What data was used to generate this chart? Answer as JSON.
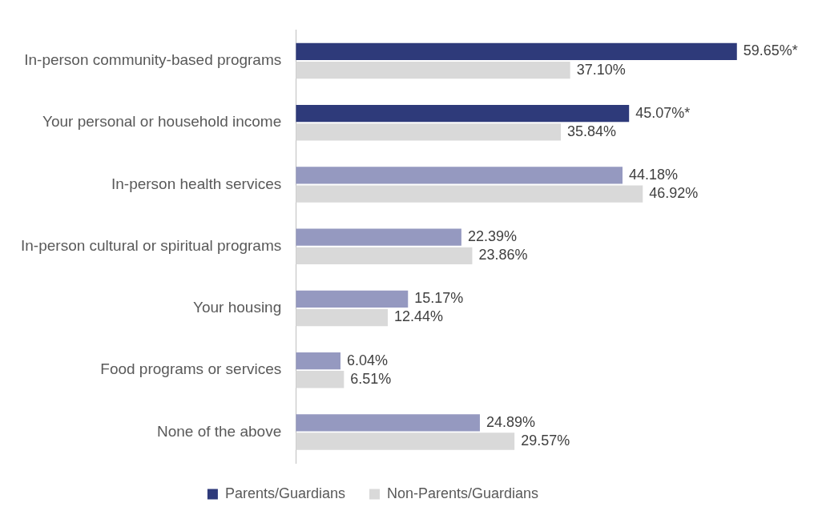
{
  "chart_data": {
    "type": "bar",
    "orientation": "horizontal",
    "categories": [
      "In-person community-based programs",
      "Your personal or household income",
      "In-person health services",
      "In-person cultural or spiritual programs",
      "Your housing",
      "Food programs or services",
      "None of the above"
    ],
    "series": [
      {
        "name": "Parents/Guardians",
        "color": "#2e3a7a",
        "colors": [
          "#2e3a7a",
          "#2e3a7a",
          "#9599c0",
          "#9599c0",
          "#9599c0",
          "#9599c0",
          "#9599c0"
        ],
        "values": [
          59.65,
          45.07,
          44.18,
          22.39,
          15.17,
          6.04,
          24.89
        ],
        "value_labels": [
          "59.65%*",
          "45.07%*",
          "44.18%",
          "22.39%",
          "15.17%",
          "6.04%",
          "24.89%"
        ]
      },
      {
        "name": "Non-Parents/Guardians",
        "color": "#d9d9d9",
        "values": [
          37.1,
          35.84,
          46.92,
          23.86,
          12.44,
          6.51,
          29.57
        ],
        "value_labels": [
          "37.10%",
          "35.84%",
          "46.92%",
          "23.86%",
          "12.44%",
          "6.51%",
          "29.57%"
        ]
      }
    ],
    "grid": false,
    "legend": "bottom"
  }
}
